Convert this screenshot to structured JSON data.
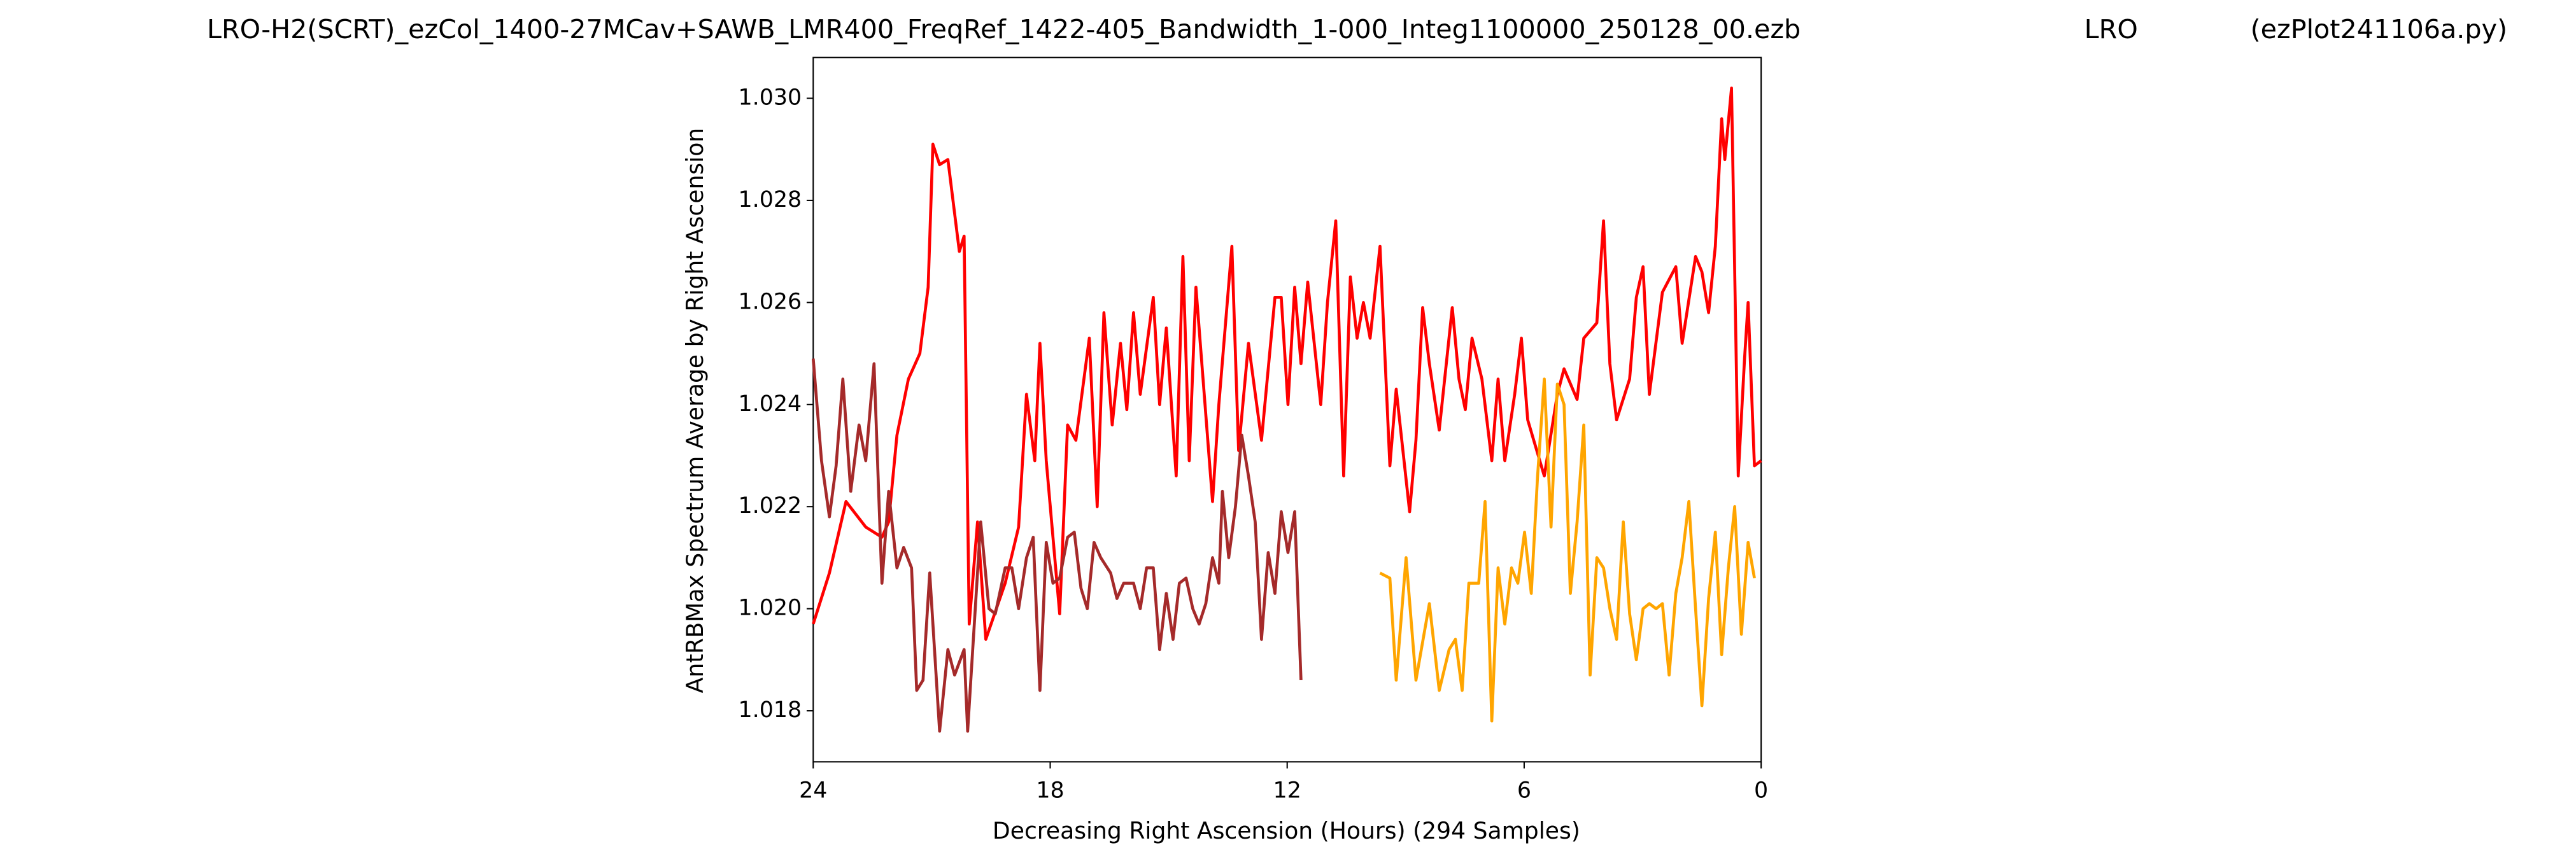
{
  "chart_data": {
    "type": "line",
    "title": "LRO-H2(SCRT)_ezCol_1400-27MCav+SAWB_LMR400_FreqRef_1422-405_Bandwidth_1-000_Integ1100000_250128_00.ezb",
    "station": "LRO",
    "program": "(ezPlot241106a.py)",
    "xlabel": "Decreasing Right Ascension (Hours) (294 Samples)",
    "ylabel": "AntRBMax Spectrum Average by Right Ascension",
    "xlim": [
      24,
      0
    ],
    "xticks": [
      24,
      18,
      12,
      6,
      0
    ],
    "ylim": [
      1.017,
      1.0308
    ],
    "yticks": [
      1.018,
      {
        "value": 1.02,
        "label": "1.020"
      },
      1.022,
      1.024,
      1.026,
      1.028,
      {
        "value": 1.03,
        "label": "1.030"
      }
    ],
    "grid": false,
    "series": [
      {
        "color": "#ff0000",
        "x": [
          24.0,
          23.59,
          23.17,
          22.67,
          22.26,
          22.09,
          21.88,
          21.59,
          21.3,
          21.09,
          20.97,
          20.8,
          20.59,
          20.3,
          20.18,
          20.05,
          19.84,
          19.63,
          19.14,
          18.8,
          18.6,
          18.39,
          18.26,
          18.1,
          17.76,
          17.56,
          17.35,
          17.01,
          16.81,
          16.64,
          16.43,
          16.22,
          16.06,
          15.89,
          15.72,
          15.39,
          15.23,
          15.06,
          14.81,
          14.64,
          14.48,
          14.31,
          13.89,
          13.73,
          13.4,
          13.23,
          12.98,
          12.65,
          12.31,
          12.15,
          11.98,
          11.81,
          11.65,
          11.48,
          11.15,
          10.98,
          10.77,
          10.57,
          10.4,
          10.23,
          10.07,
          9.9,
          9.65,
          9.4,
          9.24,
          8.9,
          8.74,
          8.57,
          8.4,
          8.15,
          7.82,
          7.65,
          7.49,
          7.32,
          7.07,
          6.82,
          6.66,
          6.49,
          6.24,
          6.07,
          5.91,
          5.49,
          5.16,
          4.99,
          4.66,
          4.49,
          4.16,
          3.99,
          3.83,
          3.66,
          3.33,
          3.16,
          2.99,
          2.83,
          2.5,
          2.16,
          2.0,
          1.66,
          1.5,
          1.33,
          1.16,
          1.0,
          0.92,
          0.75,
          0.58,
          0.42,
          0.33,
          0.17,
          0.0
        ],
        "values": [
          1.0197,
          1.0207,
          1.0221,
          1.0216,
          1.0214,
          1.0217,
          1.0234,
          1.0245,
          1.025,
          1.0263,
          1.0291,
          1.0287,
          1.0288,
          1.027,
          1.0273,
          1.0197,
          1.0217,
          1.0194,
          1.0205,
          1.0216,
          1.0242,
          1.0229,
          1.0252,
          1.0229,
          1.0199,
          1.0236,
          1.0233,
          1.0253,
          1.022,
          1.0258,
          1.0236,
          1.0252,
          1.0239,
          1.0258,
          1.0242,
          1.0261,
          1.024,
          1.0255,
          1.0226,
          1.0269,
          1.0229,
          1.0263,
          1.0221,
          1.024,
          1.0271,
          1.0231,
          1.0252,
          1.0233,
          1.0261,
          1.0261,
          1.024,
          1.0263,
          1.0248,
          1.0264,
          1.024,
          1.026,
          1.0276,
          1.0226,
          1.0265,
          1.0253,
          1.026,
          1.0253,
          1.0271,
          1.0228,
          1.0243,
          1.0219,
          1.0233,
          1.0259,
          1.0248,
          1.0235,
          1.0259,
          1.0245,
          1.0239,
          1.0253,
          1.0245,
          1.0229,
          1.0245,
          1.0229,
          1.0242,
          1.0253,
          1.0237,
          1.0226,
          1.0242,
          1.0247,
          1.0241,
          1.0253,
          1.0256,
          1.0276,
          1.0248,
          1.0237,
          1.0245,
          1.0261,
          1.0267,
          1.0242,
          1.0262,
          1.0267,
          1.0252,
          1.0269,
          1.0266,
          1.0258,
          1.0271,
          1.0296,
          1.0288,
          1.0302,
          1.0226,
          1.0249,
          1.026,
          1.0228,
          1.0229
        ]
      },
      {
        "color": "#a52a2a",
        "x": [
          24.0,
          23.79,
          23.59,
          23.42,
          23.25,
          23.05,
          22.84,
          22.67,
          22.46,
          22.26,
          22.09,
          21.88,
          21.71,
          21.51,
          21.38,
          21.22,
          21.05,
          20.8,
          20.59,
          20.42,
          20.18,
          20.09,
          19.97,
          19.76,
          19.55,
          19.39,
          19.14,
          18.97,
          18.8,
          18.6,
          18.43,
          18.26,
          18.1,
          17.93,
          17.76,
          17.56,
          17.39,
          17.22,
          17.06,
          16.89,
          16.72,
          16.47,
          16.31,
          16.14,
          15.89,
          15.72,
          15.56,
          15.39,
          15.23,
          15.06,
          14.89,
          14.73,
          14.56,
          14.39,
          14.23,
          14.06,
          13.89,
          13.73,
          13.64,
          13.48,
          13.31,
          13.15,
          12.98,
          12.81,
          12.65,
          12.48,
          12.31,
          12.15,
          11.98,
          11.81,
          11.65
        ],
        "values": [
          1.0249,
          1.0229,
          1.0218,
          1.0228,
          1.0245,
          1.0223,
          1.0236,
          1.0229,
          1.0248,
          1.0205,
          1.0223,
          1.0208,
          1.0212,
          1.0208,
          1.0184,
          1.0186,
          1.0207,
          1.0176,
          1.0192,
          1.0187,
          1.0192,
          1.0176,
          1.0191,
          1.0217,
          1.02,
          1.0199,
          1.0208,
          1.0208,
          1.02,
          1.021,
          1.0214,
          1.0184,
          1.0213,
          1.0205,
          1.0206,
          1.0214,
          1.0215,
          1.0204,
          1.02,
          1.0213,
          1.021,
          1.0207,
          1.0202,
          1.0205,
          1.0205,
          1.02,
          1.0208,
          1.0208,
          1.0192,
          1.0203,
          1.0194,
          1.0205,
          1.0206,
          1.02,
          1.0197,
          1.0201,
          1.021,
          1.0205,
          1.0223,
          1.021,
          1.022,
          1.0234,
          1.0226,
          1.0217,
          1.0194,
          1.0211,
          1.0203,
          1.0219,
          1.0211,
          1.0219,
          1.0186
        ]
      },
      {
        "color": "#ffa500",
        "x": [
          9.65,
          9.4,
          9.24,
          8.99,
          8.74,
          8.4,
          8.15,
          7.9,
          7.74,
          7.57,
          7.4,
          7.15,
          6.99,
          6.82,
          6.66,
          6.49,
          6.32,
          6.16,
          5.99,
          5.82,
          5.66,
          5.49,
          5.32,
          5.16,
          4.99,
          4.83,
          4.66,
          4.49,
          4.33,
          4.16,
          3.99,
          3.83,
          3.66,
          3.49,
          3.33,
          3.16,
          2.99,
          2.83,
          2.66,
          2.5,
          2.33,
          2.16,
          2.0,
          1.83,
          1.66,
          1.5,
          1.33,
          1.16,
          1.0,
          0.83,
          0.67,
          0.5,
          0.33,
          0.17
        ],
        "values": [
          1.0207,
          1.0206,
          1.0186,
          1.021,
          1.0186,
          1.0201,
          1.0184,
          1.0192,
          1.0194,
          1.0184,
          1.0205,
          1.0205,
          1.0221,
          1.0178,
          1.0208,
          1.0197,
          1.0208,
          1.0205,
          1.0215,
          1.0203,
          1.0226,
          1.0245,
          1.0216,
          1.0244,
          1.024,
          1.0203,
          1.0217,
          1.0236,
          1.0187,
          1.021,
          1.0208,
          1.02,
          1.0194,
          1.0217,
          1.0199,
          1.019,
          1.02,
          1.0201,
          1.02,
          1.0201,
          1.0187,
          1.0203,
          1.021,
          1.0221,
          1.02,
          1.0181,
          1.0202,
          1.0215,
          1.0191,
          1.0208,
          1.022,
          1.0195,
          1.0213,
          1.0206
        ]
      }
    ]
  }
}
